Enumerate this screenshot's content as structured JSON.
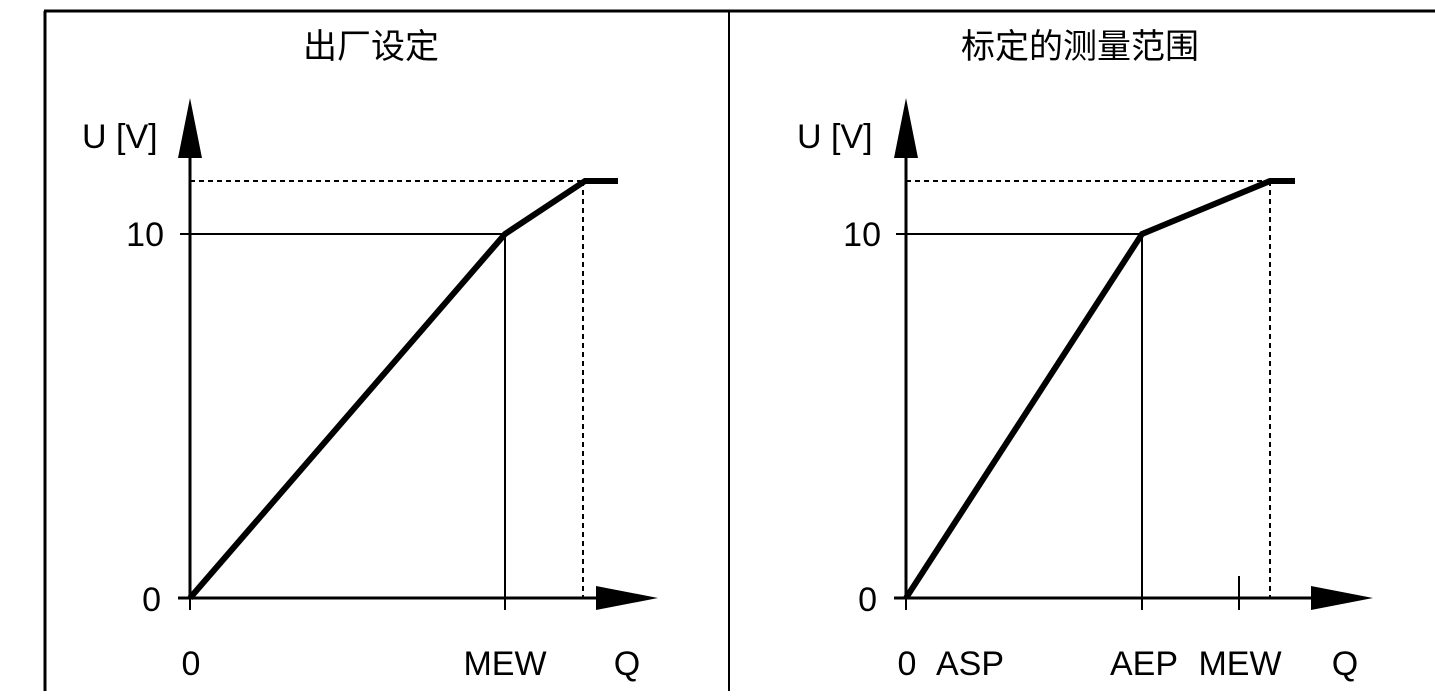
{
  "panels": [
    {
      "title": "出厂设定",
      "y_axis_label": "U [V]",
      "y_ticks": [
        "10",
        "0"
      ],
      "x_ticks": [
        "0",
        "MEW"
      ],
      "x_axis_label": "Q"
    },
    {
      "title": "标定的测量范围",
      "y_axis_label": "U [V]",
      "y_ticks": [
        "10",
        "0"
      ],
      "x_ticks": [
        "0",
        "ASP",
        "AEP",
        "MEW"
      ],
      "x_axis_label": "Q"
    }
  ]
}
